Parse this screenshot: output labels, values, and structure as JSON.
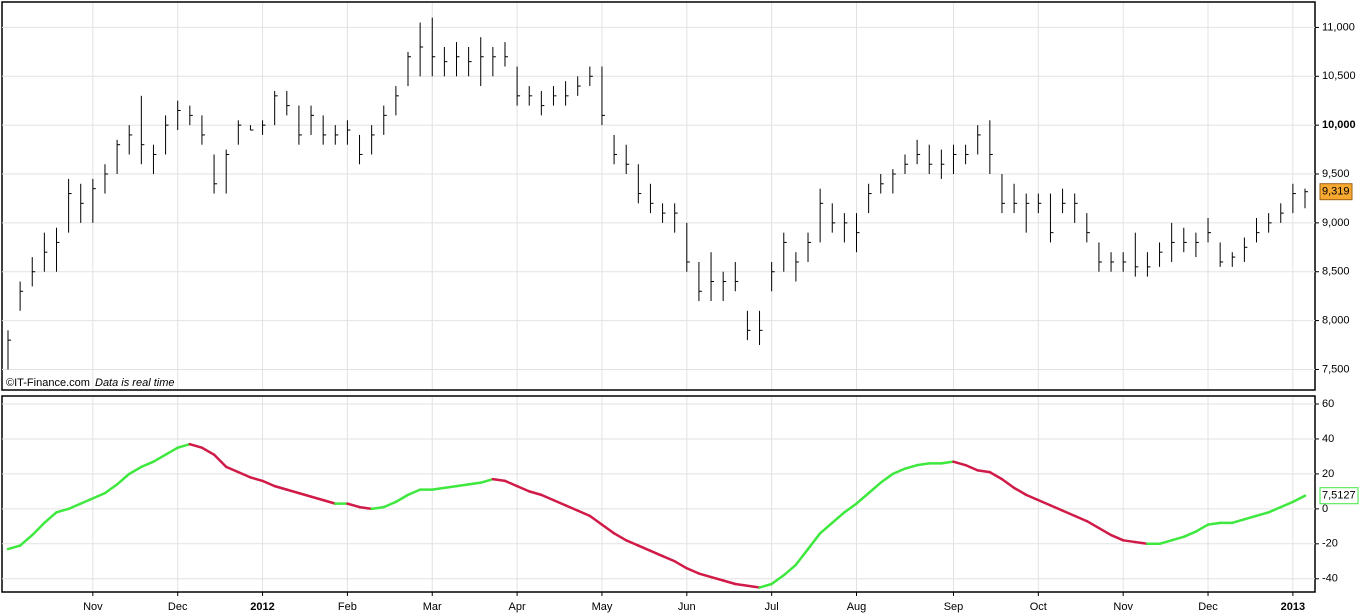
{
  "chart_data": [
    {
      "type": "ohlc",
      "source": "©IT-Finance.com",
      "note": "Data is real time",
      "color": "#000000",
      "ylim": [
        7300,
        11250
      ],
      "yticks": [
        {
          "value": 7500,
          "label": "7,500"
        },
        {
          "value": 8000,
          "label": "8,000"
        },
        {
          "value": 8500,
          "label": "8,500"
        },
        {
          "value": 9000,
          "label": "9,000"
        },
        {
          "value": 9500,
          "label": "9,500"
        },
        {
          "value": 10000,
          "label": "10,000"
        },
        {
          "value": 10500,
          "label": "10,500"
        },
        {
          "value": 11000,
          "label": "11,000"
        }
      ],
      "grid": true,
      "last_value": {
        "value": 9319,
        "label": "9,319"
      },
      "last_value_color": "#f7a830",
      "high": [
        7900,
        8400,
        8650,
        8900,
        8950,
        9450,
        9400,
        9450,
        9600,
        9850,
        10000,
        10300,
        9800,
        10100,
        10250,
        10200,
        10100,
        9700,
        9750,
        10050,
        10000,
        10050,
        10350,
        10350,
        10200,
        10200,
        10100,
        10000,
        10050,
        9900,
        10000,
        10200,
        10400,
        10750,
        11050,
        11100,
        10800,
        10850,
        10800,
        10900,
        10800,
        10850,
        10600,
        10400,
        10350,
        10400,
        10450,
        10500,
        10600,
        10600,
        9900,
        9800,
        9600,
        9400,
        9200,
        9200,
        9000,
        8600,
        8700,
        8500,
        8600,
        8100,
        8100,
        8600,
        8900,
        8700,
        8900,
        9350,
        9200,
        9100,
        9100,
        9400,
        9500,
        9550,
        9700,
        9850,
        9800,
        9750,
        9800,
        9800,
        10000,
        10050,
        9500,
        9400,
        9300,
        9300,
        9300,
        9350,
        9300,
        9100,
        8800,
        8700,
        8700,
        8900,
        8700,
        8800,
        9000,
        8950,
        8900,
        9050,
        8800,
        8700,
        8850,
        9050,
        9100,
        9200,
        9400,
        9350
      ],
      "low": [
        7500,
        8100,
        8350,
        8500,
        8500,
        8900,
        9000,
        9000,
        9300,
        9500,
        9700,
        9600,
        9500,
        9700,
        9950,
        10000,
        9800,
        9300,
        9300,
        9800,
        9950,
        9900,
        10000,
        10100,
        9800,
        9900,
        9800,
        9800,
        9800,
        9600,
        9700,
        9900,
        10100,
        10400,
        10500,
        10500,
        10500,
        10500,
        10500,
        10400,
        10500,
        10600,
        10200,
        10200,
        10100,
        10200,
        10200,
        10300,
        10400,
        10000,
        9600,
        9500,
        9200,
        9100,
        9000,
        8900,
        8500,
        8200,
        8200,
        8200,
        8300,
        7800,
        7750,
        8300,
        8500,
        8400,
        8600,
        8800,
        8900,
        8800,
        8700,
        9100,
        9300,
        9300,
        9500,
        9600,
        9500,
        9450,
        9500,
        9600,
        9700,
        9500,
        9100,
        9100,
        8900,
        9100,
        8800,
        9100,
        9000,
        8800,
        8500,
        8500,
        8500,
        8450,
        8450,
        8550,
        8600,
        8700,
        8650,
        8800,
        8550,
        8550,
        8600,
        8800,
        8900,
        9000,
        9100,
        9150
      ],
      "close": [
        7800,
        8300,
        8500,
        8700,
        8800,
        9300,
        9200,
        9350,
        9500,
        9800,
        9900,
        9800,
        9700,
        10000,
        10150,
        10100,
        9900,
        9400,
        9700,
        10000,
        9950,
        10000,
        10300,
        10200,
        9900,
        10100,
        9900,
        9900,
        9950,
        9700,
        9900,
        10100,
        10300,
        10700,
        10800,
        10700,
        10650,
        10700,
        10650,
        10700,
        10700,
        10700,
        10300,
        10300,
        10200,
        10300,
        10300,
        10400,
        10500,
        10100,
        9700,
        9600,
        9300,
        9200,
        9100,
        9100,
        8600,
        8300,
        8400,
        8400,
        8400,
        7900,
        7900,
        8500,
        8800,
        8600,
        8800,
        9200,
        9000,
        9000,
        8900,
        9300,
        9400,
        9500,
        9600,
        9700,
        9600,
        9600,
        9700,
        9700,
        9900,
        9700,
        9200,
        9200,
        9200,
        9200,
        8900,
        9200,
        9200,
        8900,
        8600,
        8600,
        8600,
        8550,
        8550,
        8700,
        8800,
        8800,
        8800,
        8900,
        8600,
        8650,
        8750,
        8900,
        9000,
        9100,
        9300,
        9319
      ]
    },
    {
      "type": "line",
      "ylim": [
        -47,
        64
      ],
      "yticks": [
        -40,
        -20,
        0,
        20,
        40,
        60
      ],
      "grid": true,
      "up_color": "#3ee83e",
      "down_color": "#d01a48",
      "last_value": {
        "value": 7.5127,
        "label": "7,5127"
      },
      "categories": [
        null,
        null,
        null,
        null,
        null,
        null,
        null,
        "Nov",
        null,
        null,
        null,
        null,
        null,
        null,
        "Dec",
        null,
        null,
        null,
        null,
        null,
        null,
        "2012",
        null,
        null,
        null,
        null,
        null,
        null,
        "Feb",
        null,
        null,
        null,
        null,
        null,
        null,
        "Mar",
        null,
        null,
        null,
        null,
        null,
        null,
        "Apr",
        null,
        null,
        null,
        null,
        null,
        null,
        "May",
        null,
        null,
        null,
        null,
        null,
        null,
        "Jun",
        null,
        null,
        null,
        null,
        null,
        null,
        "Jul",
        null,
        null,
        null,
        null,
        null,
        null,
        "Aug",
        null,
        null,
        null,
        null,
        null,
        null,
        null,
        "Sep",
        null,
        null,
        null,
        null,
        null,
        null,
        "Oct",
        null,
        null,
        null,
        null,
        null,
        null,
        "Nov",
        null,
        null,
        null,
        null,
        null,
        null,
        "Dec",
        null,
        null,
        null,
        null,
        null,
        null,
        "2013",
        null
      ],
      "values": [
        -23,
        -21,
        -15,
        -8,
        -2,
        0,
        3,
        6,
        9,
        14,
        20,
        24,
        27,
        31,
        35,
        37,
        35,
        31,
        24,
        21,
        18,
        16,
        13,
        11,
        9,
        7,
        5,
        3,
        3,
        1,
        0,
        1,
        4,
        8,
        11,
        11,
        12,
        13,
        14,
        15,
        17,
        16,
        13,
        10,
        8,
        5,
        2,
        -1,
        -4,
        -9,
        -14,
        -18,
        -21,
        -24,
        -27,
        -30,
        -34,
        -37,
        -39,
        -41,
        -43,
        -44,
        -45,
        -43,
        -38,
        -32,
        -23,
        -14,
        -8,
        -2,
        3,
        9,
        15,
        20,
        23,
        25,
        26,
        26,
        27,
        25,
        22,
        21,
        17,
        12,
        8,
        5,
        2,
        -1,
        -4,
        -7,
        -11,
        -15,
        -18,
        -19,
        -20,
        -20,
        -18,
        -16,
        -13,
        -9,
        -8,
        -8,
        -6,
        -4,
        -2,
        1,
        4,
        7.5127
      ]
    }
  ]
}
